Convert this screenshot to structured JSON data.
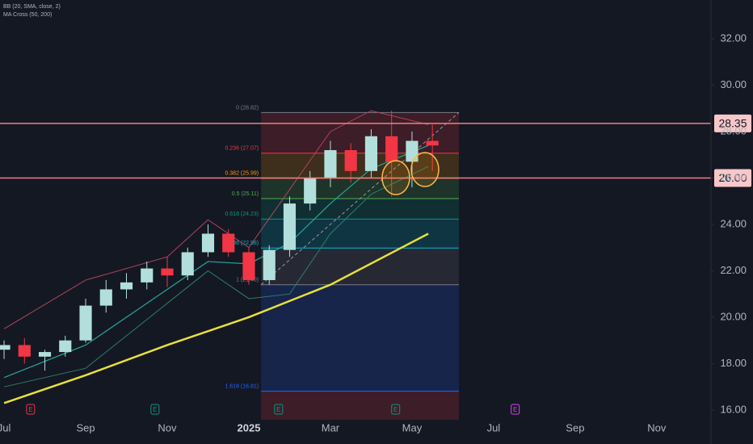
{
  "chart_data": {
    "type": "candlestick",
    "legend": [
      "BB (20, SMA, close, 2)",
      "MA Cross (50, 200)"
    ],
    "x": [
      0,
      0.5,
      1,
      1.5,
      2,
      2.5,
      3,
      3.5,
      4,
      4.5,
      5,
      5.5,
      6,
      6.5,
      7,
      7.5,
      8,
      8.5,
      9,
      9.5,
      10,
      10.5
    ],
    "open": [
      18.6,
      18.8,
      18.3,
      18.5,
      19.0,
      20.5,
      21.2,
      21.5,
      22.1,
      21.8,
      22.8,
      23.6,
      22.8,
      21.6,
      22.9,
      24.9,
      26.0,
      27.2,
      26.3,
      27.8,
      26.7,
      27.6
    ],
    "high": [
      19.0,
      19.1,
      18.6,
      19.2,
      20.8,
      21.6,
      21.9,
      22.4,
      22.6,
      23.0,
      24.0,
      23.8,
      23.0,
      23.1,
      25.2,
      26.3,
      27.6,
      27.5,
      28.1,
      28.9,
      28.0,
      28.3
    ],
    "low": [
      18.2,
      18.0,
      17.7,
      18.3,
      18.9,
      20.2,
      20.8,
      21.2,
      21.3,
      21.6,
      22.6,
      22.6,
      21.4,
      21.4,
      22.6,
      24.6,
      25.6,
      25.8,
      26.0,
      25.2,
      25.6,
      26.3
    ],
    "close": [
      18.8,
      18.3,
      18.5,
      19.0,
      20.5,
      21.2,
      21.5,
      22.1,
      21.8,
      22.8,
      23.6,
      22.8,
      21.6,
      22.9,
      24.9,
      26.0,
      27.2,
      26.3,
      27.8,
      26.7,
      27.6,
      27.4
    ],
    "up_color": "#b2dfdb",
    "down_color": "#f23645",
    "xlim": [
      -0.1,
      17.33
    ],
    "xticks": [
      {
        "value": 0,
        "label": "Jul"
      },
      {
        "value": 2,
        "label": "Sep"
      },
      {
        "value": 4,
        "label": "Nov"
      },
      {
        "value": 6,
        "label": "2025"
      },
      {
        "value": 8,
        "label": "Mar"
      },
      {
        "value": 10,
        "label": "May"
      },
      {
        "value": 12,
        "label": "Jul"
      },
      {
        "value": 14,
        "label": "Sep"
      },
      {
        "value": 16,
        "label": "Nov"
      }
    ],
    "ylim": [
      15.58,
      33.67
    ],
    "yticks": [
      {
        "value": 16,
        "label": "16.00"
      },
      {
        "value": 18,
        "label": "18.00"
      },
      {
        "value": 20,
        "label": "20.00"
      },
      {
        "value": 22,
        "label": "22.00"
      },
      {
        "value": 24,
        "label": "24.00"
      },
      {
        "value": 26,
        "label": "26.00"
      },
      {
        "value": 28,
        "label": "28.00"
      },
      {
        "value": 30,
        "label": "30.00"
      },
      {
        "value": 32,
        "label": "32.00"
      }
    ],
    "overlays": [
      {
        "color": "#e8e03a",
        "width": 2.5,
        "x": [
          0,
          2,
          4,
          6,
          8,
          10.4
        ],
        "values": [
          16.3,
          17.5,
          18.8,
          20.0,
          21.4,
          23.6
        ]
      },
      {
        "color": "#26a69a",
        "width": 1.2,
        "x": [
          0,
          2,
          4,
          5,
          6,
          7,
          8,
          9,
          10.4
        ],
        "values": [
          17.4,
          18.8,
          21.2,
          22.4,
          22.3,
          23.2,
          24.9,
          26.4,
          27.4
        ]
      },
      {
        "color": "#b2455a",
        "width": 1,
        "x": [
          0,
          2,
          4,
          5,
          6,
          7,
          8,
          9,
          10.4
        ],
        "values": [
          19.5,
          21.6,
          22.6,
          24.2,
          23.0,
          25.5,
          28.0,
          28.9,
          28.3
        ]
      },
      {
        "color": "#2e7d6a",
        "width": 1,
        "x": [
          0,
          2,
          4,
          5,
          6,
          7,
          8,
          9,
          10.4
        ],
        "values": [
          17.0,
          17.8,
          20.6,
          22.0,
          20.8,
          21.0,
          23.6,
          25.3,
          26.5
        ]
      }
    ],
    "hlines": [
      28.35,
      {
        "value": 26,
        "label": "26.00"
      }
    ],
    "hline_color": "#f77c80",
    "fib": {
      "x": [
        6.3,
        11.15
      ],
      "levels": [
        {
          "label": "0 (28.82)",
          "value": 28.82,
          "color": "#787b86"
        },
        {
          "label": "0.236 (27.07)",
          "value": 27.07,
          "color": "#f23645"
        },
        {
          "label": "0.382 (25.99)",
          "value": 25.99,
          "color": "#ff9800"
        },
        {
          "label": "0.5 (25.11)",
          "value": 25.11,
          "color": "#4caf50"
        },
        {
          "label": "0.618 (24.23)",
          "value": 24.23,
          "color": "#089981"
        },
        {
          "label": "0.786 (22.98)",
          "value": 22.98,
          "color": "#00bcd4"
        },
        {
          "label": "1 (21.40)",
          "value": 21.4,
          "color": "#787b86"
        },
        {
          "label": "1.618 (16.81)",
          "value": 16.81,
          "color": "#2962ff"
        }
      ]
    },
    "events": [
      {
        "x": 0.65,
        "label": "E",
        "color": "#f23645"
      },
      {
        "x": 3.7,
        "label": "E",
        "color": "#089981"
      },
      {
        "x": 6.73,
        "label": "E",
        "color": "#089981"
      },
      {
        "x": 9.6,
        "label": "E",
        "color": "#089981"
      },
      {
        "x": 12.53,
        "label": "E",
        "color": "#e040fb"
      }
    ]
  }
}
